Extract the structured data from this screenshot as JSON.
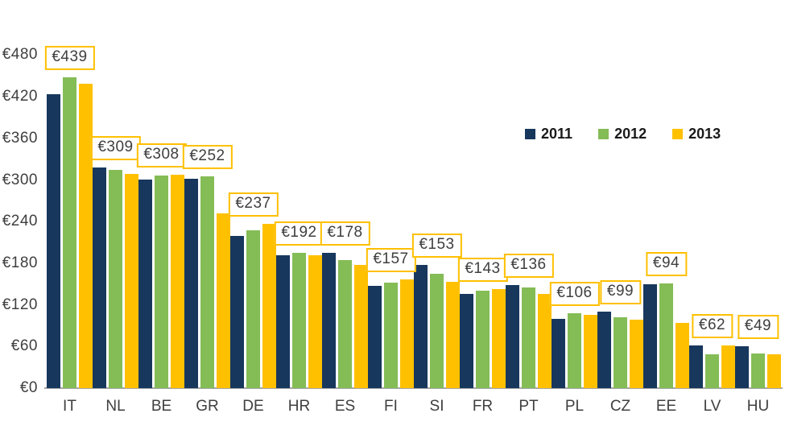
{
  "chart_data": {
    "type": "bar",
    "title": "",
    "xlabel": "",
    "ylabel": "",
    "ylim": [
      0,
      480
    ],
    "grid": false,
    "legend_position": "upper-right-inside",
    "categories": [
      "IT",
      "NL",
      "BE",
      "GR",
      "DE",
      "HR",
      "ES",
      "FI",
      "SI",
      "FR",
      "PT",
      "PL",
      "CZ",
      "EE",
      "LV",
      "HU"
    ],
    "series": [
      {
        "name": "2011",
        "color": "#17375d",
        "values": [
          424,
          318,
          301,
          302,
          219,
          192,
          195,
          147,
          177,
          136,
          148,
          100,
          110,
          150,
          62,
          60
        ]
      },
      {
        "name": "2012",
        "color": "#84bc56",
        "values": [
          448,
          314,
          306,
          305,
          228,
          195,
          185,
          152,
          165,
          141,
          145,
          108,
          102,
          151,
          49,
          50
        ]
      },
      {
        "name": "2013",
        "color": "#ffc000",
        "values": [
          439,
          309,
          308,
          252,
          237,
          192,
          178,
          157,
          153,
          143,
          136,
          106,
          99,
          94,
          62,
          49
        ]
      }
    ],
    "bar_labels": [
      "€439",
      "€309",
      "€308",
      "€252",
      "€237",
      "€192",
      "€178",
      "€157",
      "€153",
      "€143",
      "€136",
      "€106",
      "€99",
      "€94",
      "€62",
      "€49"
    ],
    "bar_label_series": "2013",
    "y_ticks": [
      {
        "label": "€0",
        "value": 0
      },
      {
        "label": "€60",
        "value": 60
      },
      {
        "label": "€120",
        "value": 120
      },
      {
        "label": "€180",
        "value": 180
      },
      {
        "label": "€240",
        "value": 240
      },
      {
        "label": "€300",
        "value": 300
      },
      {
        "label": "€360",
        "value": 360
      },
      {
        "label": "€420",
        "value": 420
      },
      {
        "label": "€480",
        "value": 480
      }
    ],
    "colors": {
      "label_box_border": "#ffc000",
      "label_box_background": "#ffffff",
      "axis_text": "#3f3f3f",
      "axis_line": "#a6a6a6",
      "background": "#ffffff"
    }
  }
}
